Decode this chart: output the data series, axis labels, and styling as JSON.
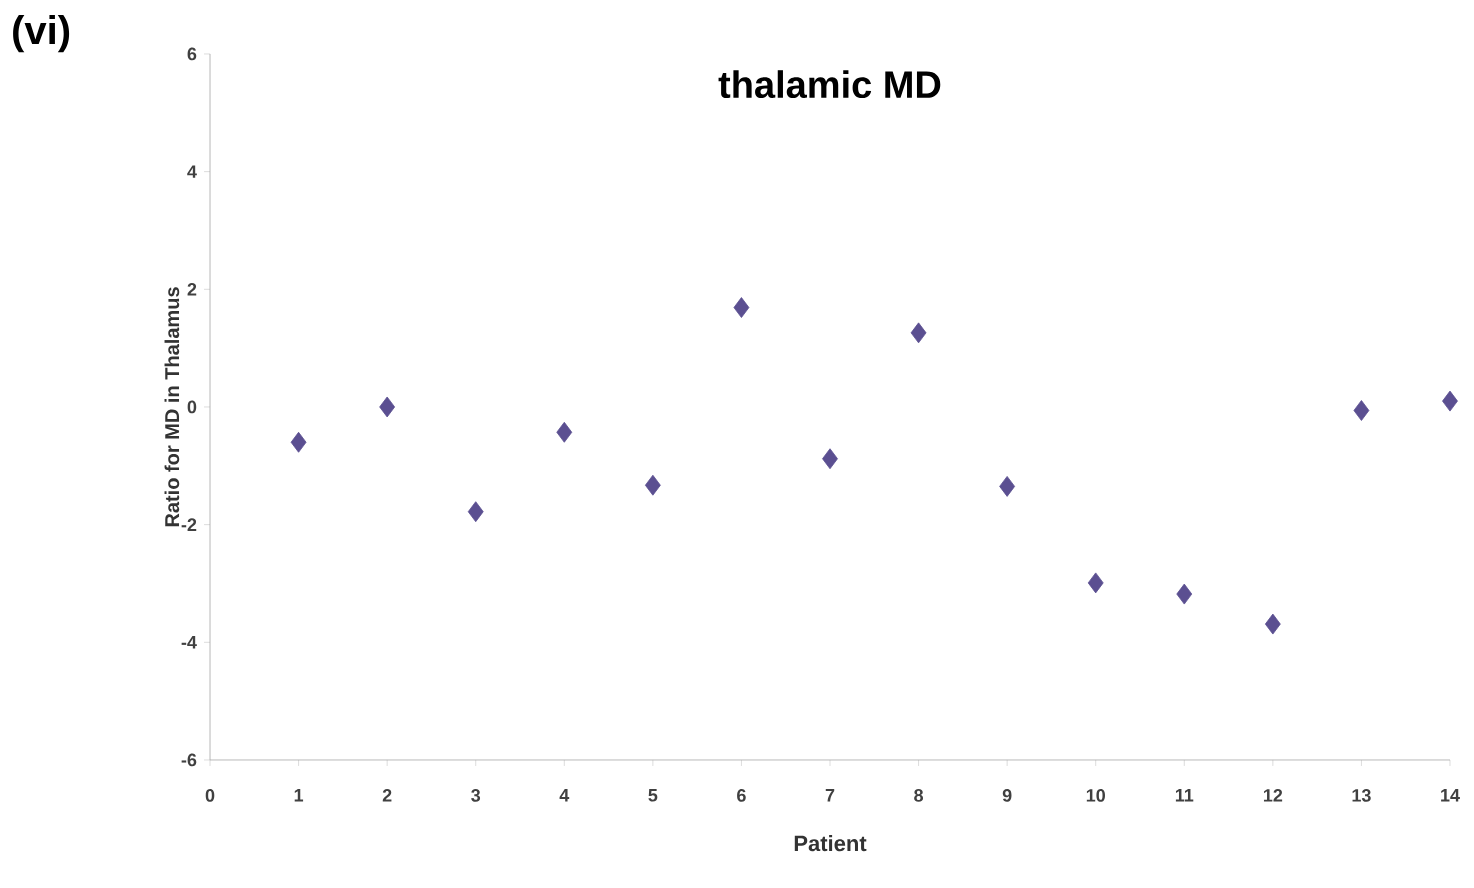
{
  "chart_data": {
    "type": "scatter",
    "title": "thalamic MD",
    "xlabel": "Patient",
    "ylabel": "Ratio for MD in Thalamus",
    "annotations": [
      "(vi)"
    ],
    "x": [
      1,
      2,
      3,
      4,
      5,
      6,
      7,
      8,
      9,
      10,
      11,
      12,
      13,
      14
    ],
    "values": [
      -0.6,
      0.0,
      -1.78,
      -0.43,
      -1.33,
      1.69,
      -0.88,
      1.26,
      -1.35,
      -2.99,
      -3.18,
      -3.69,
      -0.06,
      0.1
    ],
    "color": "#5b4f91",
    "marker": "diamond",
    "grid": false,
    "xlim": [
      0,
      14
    ],
    "xticks": [
      0,
      1,
      2,
      3,
      4,
      5,
      6,
      7,
      8,
      9,
      10,
      11,
      12,
      13,
      14
    ],
    "ylim": [
      -6,
      6
    ],
    "yticks": [
      -6,
      -4,
      -2,
      0,
      2,
      4,
      6
    ]
  }
}
